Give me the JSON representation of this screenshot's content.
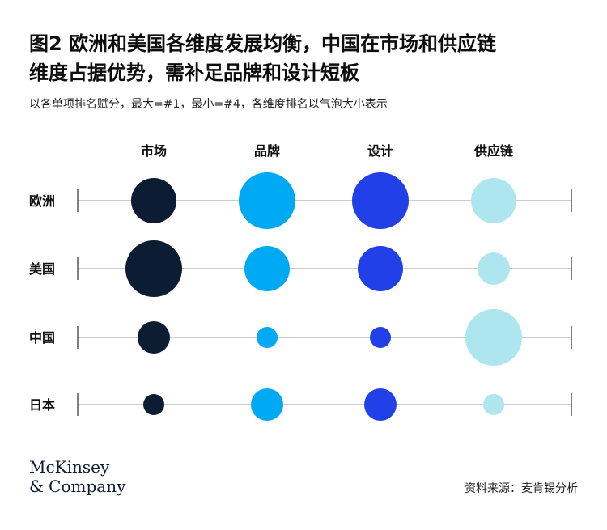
{
  "title_line1": "图2 欧洲和美国各维度发展均衡，中国在市场和供应链",
  "title_line2": "维度占据优势，需补足品牌和设计短板",
  "subtitle": "以各单项排名赋分，最大=#1，最小=#4，各维度排名以气泡大小表示",
  "logo": {
    "line1": "McKinsey",
    "line2": "& Company"
  },
  "source": "资料来源：麦肯锡分析",
  "colors": {
    "市场": "#0b1c33",
    "品牌": "#00a9f4",
    "设计": "#2140e8",
    "供应链": "#aee6f0",
    "axis": "#cccccc"
  },
  "chart_data": {
    "type": "bubble",
    "columns": [
      "市场",
      "品牌",
      "设计",
      "供应链"
    ],
    "rows": [
      "欧洲",
      "美国",
      "中国",
      "日本"
    ],
    "ranks": {
      "欧洲": {
        "市场": 2,
        "品牌": 1,
        "设计": 1,
        "供应链": 2
      },
      "美国": {
        "市场": 1,
        "品牌": 2,
        "设计": 2,
        "供应链": 3
      },
      "中国": {
        "市场": 3,
        "品牌": 4,
        "设计": 4,
        "供应链": 1
      },
      "日本": {
        "市场": 4,
        "品牌": 3,
        "设计": 3,
        "供应链": 4
      }
    },
    "size_rule": "#1 = largest, #4 = smallest"
  }
}
